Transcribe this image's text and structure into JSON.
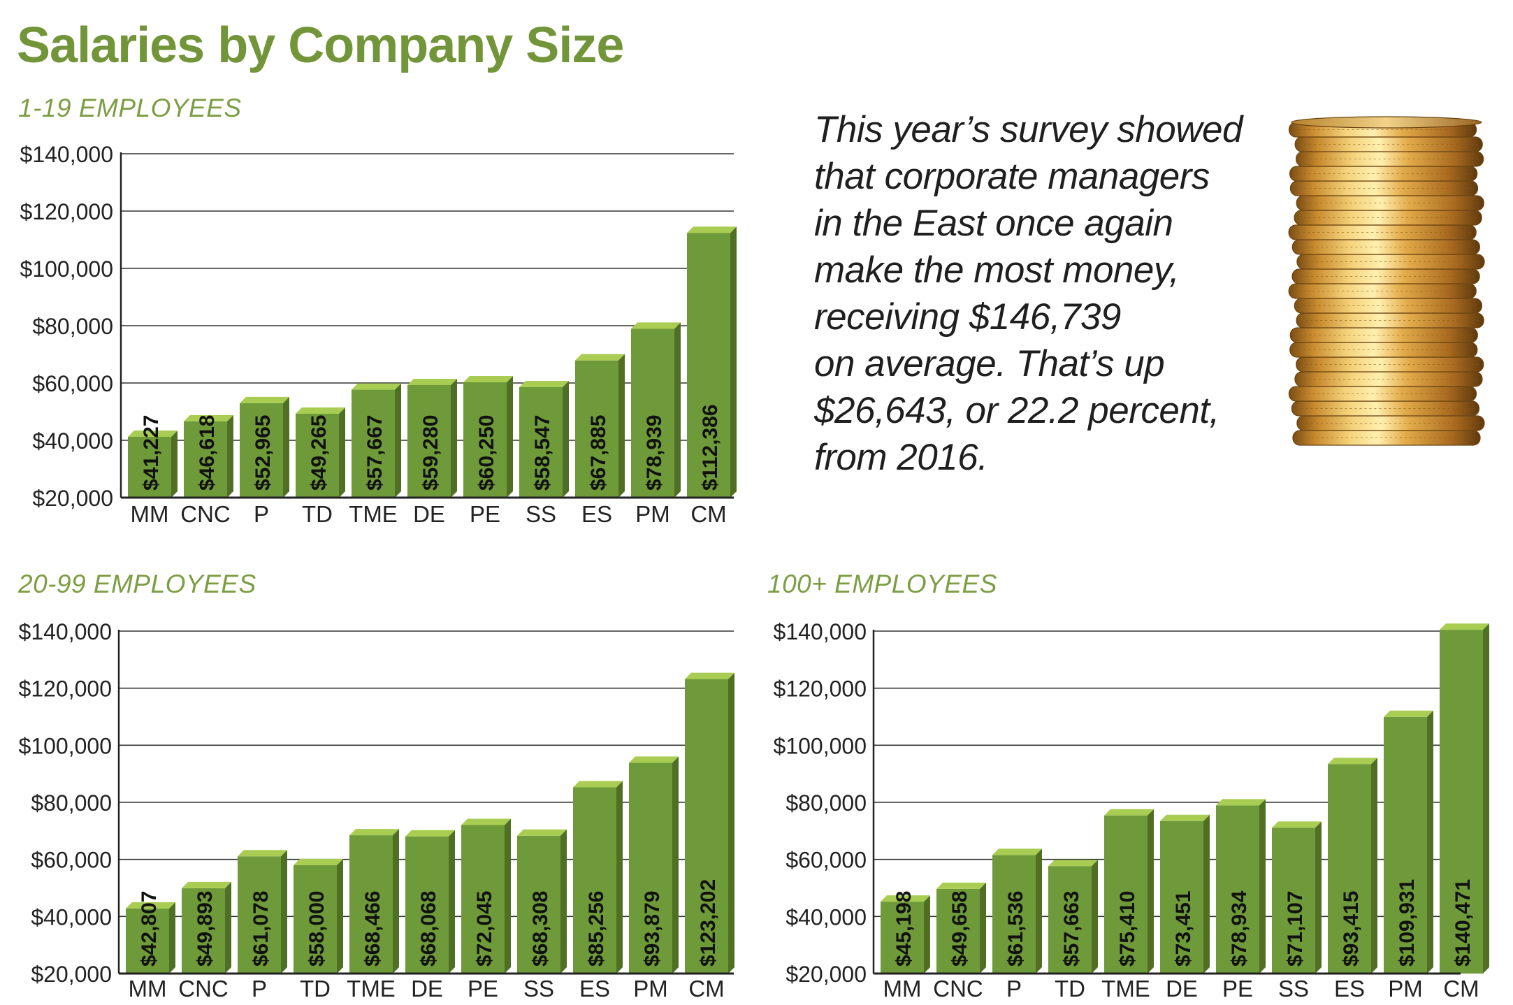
{
  "title": "Salaries by Company Size",
  "callout": {
    "lines": [
      "This year’s survey showed",
      "that corporate managers",
      "in the East once again",
      "make the most money,",
      "receiving $146,739",
      "on average. That’s up",
      "$26,643, or 22.2 percent,",
      "from 2016."
    ]
  },
  "image": {
    "icon": "coin-stack-photo"
  },
  "colors": {
    "title": "#73953a",
    "bar_front": "#6f9a3a",
    "bar_side": "#4f7024",
    "bar_top": "#a9cd52",
    "value_text": "#111111"
  },
  "chart_data": [
    {
      "type": "bar",
      "title": "1-19 EMPLOYEES",
      "categories": [
        "MM",
        "CNC",
        "P",
        "TD",
        "TME",
        "DE",
        "PE",
        "SS",
        "ES",
        "PM",
        "CM"
      ],
      "values": [
        41227,
        46618,
        52965,
        49265,
        57667,
        59280,
        60250,
        58547,
        67885,
        78939,
        112386
      ],
      "value_labels": [
        "$41,227",
        "$46,618",
        "$52,965",
        "$49,265",
        "$57,667",
        "$59,280",
        "$60,250",
        "$58,547",
        "$67,885",
        "$78,939",
        "$112,386"
      ],
      "y_ticks": [
        "$20,000",
        "$40,000",
        "$60,000",
        "$80,000",
        "$100,000",
        "$120,000",
        "$140,000"
      ],
      "ylim": [
        20000,
        140000
      ],
      "grid": true
    },
    {
      "type": "bar",
      "title": "20-99 EMPLOYEES",
      "categories": [
        "MM",
        "CNC",
        "P",
        "TD",
        "TME",
        "DE",
        "PE",
        "SS",
        "ES",
        "PM",
        "CM"
      ],
      "values": [
        42807,
        49893,
        61078,
        58000,
        68466,
        68068,
        72045,
        68308,
        85256,
        93879,
        123202
      ],
      "value_labels": [
        "$42,807",
        "$49,893",
        "$61,078",
        "$58,000",
        "$68,466",
        "$68,068",
        "$72,045",
        "$68,308",
        "$85,256",
        "$93,879",
        "$123,202"
      ],
      "y_ticks": [
        "$20,000",
        "$40,000",
        "$60,000",
        "$80,000",
        "$100,000",
        "$120,000",
        "$140,000"
      ],
      "ylim": [
        20000,
        140000
      ],
      "grid": true
    },
    {
      "type": "bar",
      "title": "100+ EMPLOYEES",
      "categories": [
        "MM",
        "CNC",
        "P",
        "TD",
        "TME",
        "DE",
        "PE",
        "SS",
        "ES",
        "PM",
        "CM"
      ],
      "values": [
        45198,
        49658,
        61536,
        57663,
        75410,
        73451,
        78934,
        71107,
        93415,
        109931,
        140471
      ],
      "value_labels": [
        "$45,198",
        "$49,658",
        "$61,536",
        "$57,663",
        "$75,410",
        "$73,451",
        "$78,934",
        "$71,107",
        "$93,415",
        "$109,931",
        "$140,471"
      ],
      "y_ticks": [
        "$20,000",
        "$40,000",
        "$60,000",
        "$80,000",
        "$100,000",
        "$120,000",
        "$140,000"
      ],
      "ylim": [
        20000,
        140000
      ],
      "grid": true
    }
  ]
}
